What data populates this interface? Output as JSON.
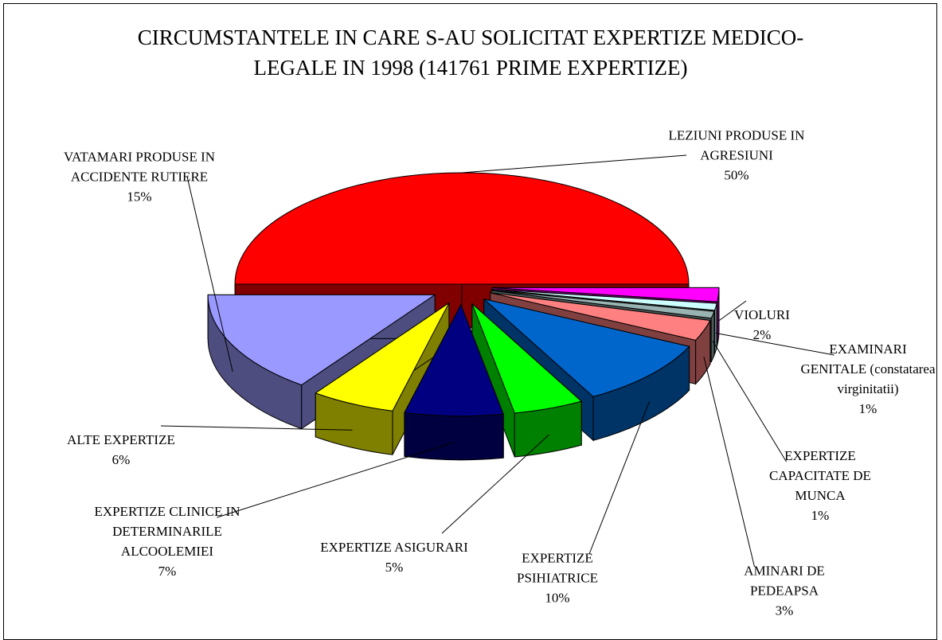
{
  "chart_data": {
    "type": "pie",
    "title": "CIRCUMSTANTELE IN CARE S-AU SOLICITAT EXPERTIZE MEDICO-LEGALE IN 1998 (141761 PRIME EXPERTIZE)",
    "categories": [
      "LEZIUNI PRODUSE IN AGRESIUNI",
      "VIOLURI",
      "EXAMINARI GENITALE (constatarea virginitatii)",
      "EXPERTIZE CAPACITATE DE MUNCA",
      "AMINARI DE PEDEAPSA",
      "EXPERTIZE PSIHIATRICE",
      "EXPERTIZE ASIGURARI",
      "EXPERTIZE CLINICE IN DETERMINARILE ALCOOLEMIEI",
      "ALTE EXPERTIZE",
      "VATAMARI PRODUSE IN ACCIDENTE RUTIERE"
    ],
    "values": [
      50,
      2,
      1,
      1,
      3,
      10,
      5,
      7,
      6,
      15
    ],
    "value_labels": [
      "50%",
      "2%",
      "1%",
      "1%",
      "3%",
      "10%",
      "5%",
      "7%",
      "6%",
      "15%"
    ],
    "colors": [
      "#ff0000",
      "#ff00ff",
      "#ccffff",
      "#99b3b3",
      "#ff8080",
      "#0066cc",
      "#00ff00",
      "#000080",
      "#ffff00",
      "#9999ff"
    ]
  }
}
